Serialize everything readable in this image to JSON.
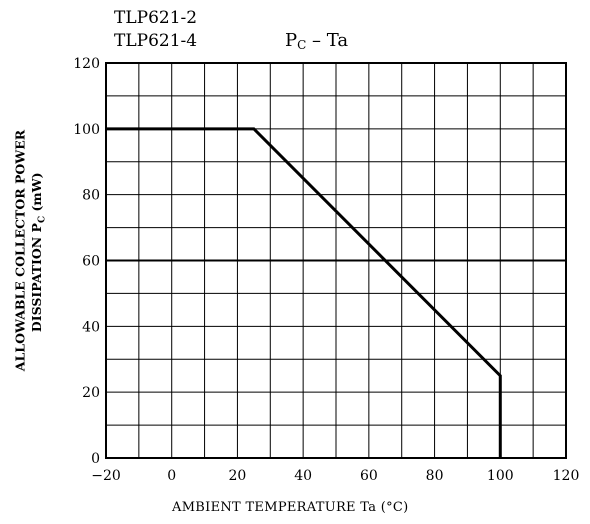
{
  "header": {
    "model_lines": [
      "TLP621-2",
      "TLP621-4"
    ]
  },
  "chart_data": {
    "type": "line",
    "title_main": "P",
    "title_sub": "C",
    "title_rest": " – Ta",
    "xlabel": "AMBIENT TEMPERATURE   Ta   (°C)",
    "ylabel_line1": "ALLOWABLE COLLECTOR POWER",
    "ylabel_line2_main": "DISSIPATION   P",
    "ylabel_line2_sub": "C",
    "ylabel_line2_rest": "  (mW)",
    "xlim": [
      -20,
      120
    ],
    "ylim": [
      0,
      120
    ],
    "x_ticks": [
      -20,
      0,
      20,
      40,
      60,
      80,
      100,
      120
    ],
    "x_tick_labels": [
      "−20",
      "0",
      "20",
      "40",
      "60",
      "80",
      "100",
      "120"
    ],
    "y_ticks": [
      0,
      20,
      40,
      60,
      80,
      100,
      120
    ],
    "y_tick_labels": [
      "0",
      "20",
      "40",
      "60",
      "80",
      "100",
      "120"
    ],
    "minor_x_step": 10,
    "minor_y_step": 10,
    "grid": true,
    "series": [
      {
        "x": [
          -20,
          25,
          100,
          100
        ],
        "y": [
          100,
          100,
          25,
          0
        ]
      }
    ]
  }
}
